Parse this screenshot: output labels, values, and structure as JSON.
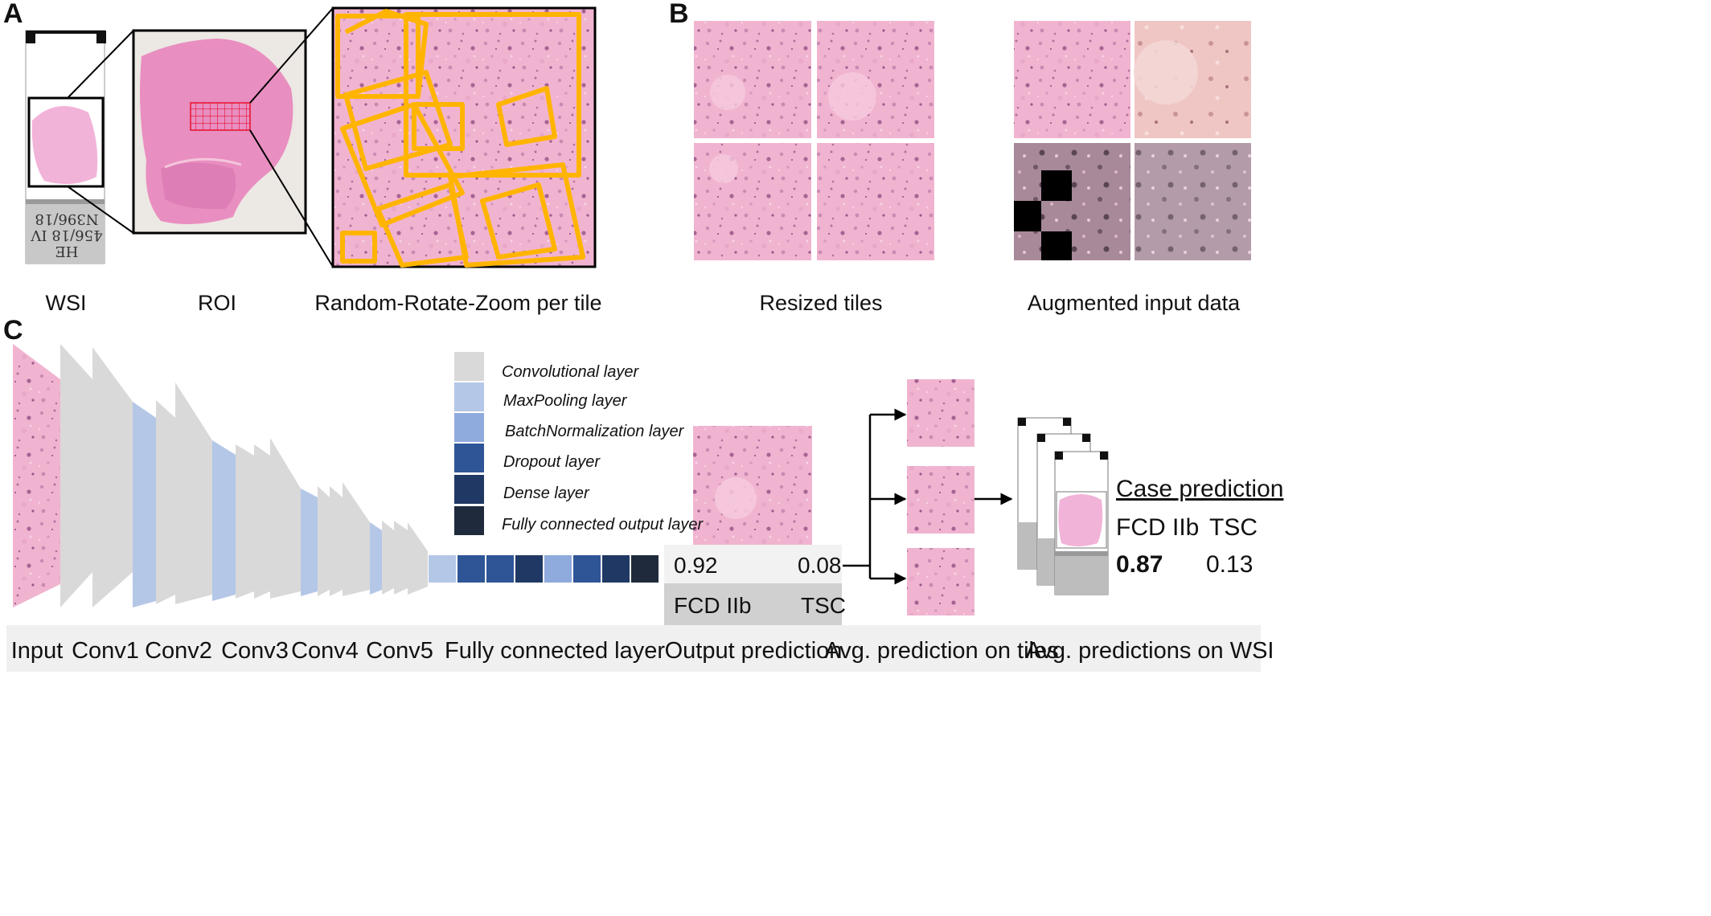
{
  "panels": {
    "a": "A",
    "b": "B",
    "c": "C"
  },
  "panel_a": {
    "captions": {
      "wsi": "WSI",
      "roi": "ROI",
      "rrz": "Random-Rotate-Zoom per tile"
    },
    "slide_label_lines": [
      "HE",
      "456/18 IV",
      "N396/18"
    ]
  },
  "panel_b": {
    "captions": {
      "resized": "Resized tiles",
      "augmented": "Augmented input data"
    }
  },
  "legend": [
    {
      "label": "Convolutional layer",
      "color": "#d9d9d9"
    },
    {
      "label": "MaxPooling layer",
      "color": "#b4c7e7"
    },
    {
      "label": "BatchNormalization layer",
      "color": "#8faadc"
    },
    {
      "label": "Dropout layer",
      "color": "#2f5597"
    },
    {
      "label": "Dense layer",
      "color": "#203864"
    },
    {
      "label": "Fully connected output layer",
      "color": "#1f2a3c"
    }
  ],
  "output_prediction": {
    "value_left": "0.92",
    "value_right": "0.08",
    "class_left": "FCD IIb",
    "class_right": "TSC"
  },
  "case_prediction": {
    "title": "Case prediction",
    "class_left": "FCD IIb",
    "class_right": "TSC",
    "value_left": "0.87",
    "value_right": "0.13"
  },
  "bottom_labels": {
    "input": "Input",
    "conv1": "Conv1",
    "conv2": "Conv2",
    "conv3": "Conv3",
    "conv4": "Conv4",
    "conv5": "Conv5",
    "fc": "Fully connected layer",
    "output": "Output prediction",
    "avg_tiles": "Avg. prediction on tiles",
    "avg_wsi": "Avg. predictions on WSI"
  },
  "colors": {
    "tissue": "#f2b6d2",
    "tissue_dark": "#e08fba",
    "accent_orange": "#ffb400",
    "roi_grid": "#e8102f",
    "conv": "#d9d9d9",
    "maxpool": "#b4c7e7",
    "batchnorm": "#8faadc",
    "dropout": "#2f5597",
    "dense": "#203864",
    "fc_out": "#1f2a3c",
    "bottom_bar": "#f0f0f0"
  }
}
